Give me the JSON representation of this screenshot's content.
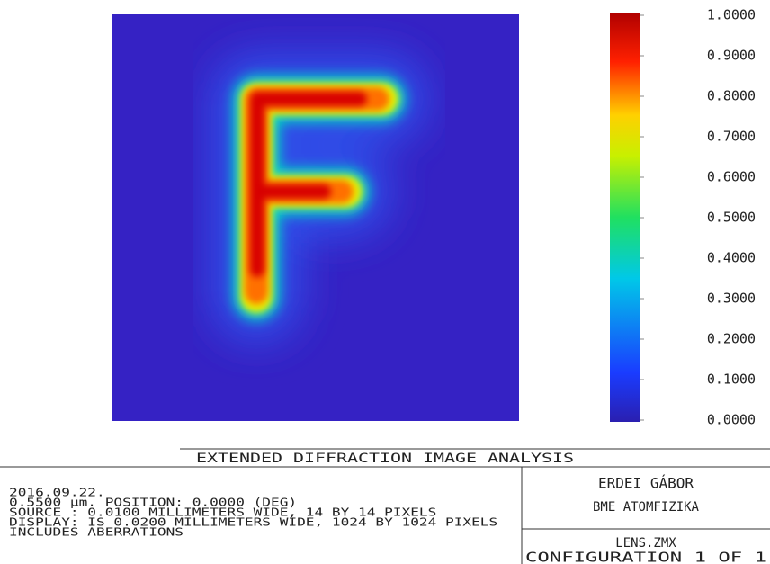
{
  "colorbar": {
    "lim": [
      0,
      1
    ],
    "ticks": [
      {
        "value": 1,
        "label": "1.0000"
      },
      {
        "value": 0.9,
        "label": "0.9000"
      },
      {
        "value": 0.8,
        "label": "0.8000"
      },
      {
        "value": 0.7,
        "label": "0.7000"
      },
      {
        "value": 0.6,
        "label": "0.6000"
      },
      {
        "value": 0.5,
        "label": "0.5000"
      },
      {
        "value": 0.4,
        "label": "0.4000"
      },
      {
        "value": 0.3,
        "label": "0.3000"
      },
      {
        "value": 0.2,
        "label": "0.2000"
      },
      {
        "value": 0.1,
        "label": "0.1000"
      },
      {
        "value": 0,
        "label": "0.0000"
      }
    ]
  },
  "footer": {
    "title": "EXTENDED DIFFRACTION IMAGE ANALYSIS",
    "lines": [
      "2016.09.22.",
      "0.5500 µm. POSITION: 0.0000 (DEG)",
      "SOURCE : 0.0100 MILLIMETERS WIDE, 14 BY 14 PIXELS",
      "DISPLAY: IS 0.0200 MILLIMETERS WIDE, 1024 BY 1024 PIXELS",
      "INCLUDES ABERRATIONS"
    ],
    "author": "ERDEI GÁBOR",
    "institution": "BME ATOMFIZIKA",
    "file": "LENS.ZMX",
    "configuration": "CONFIGURATION 1 OF 1"
  }
}
